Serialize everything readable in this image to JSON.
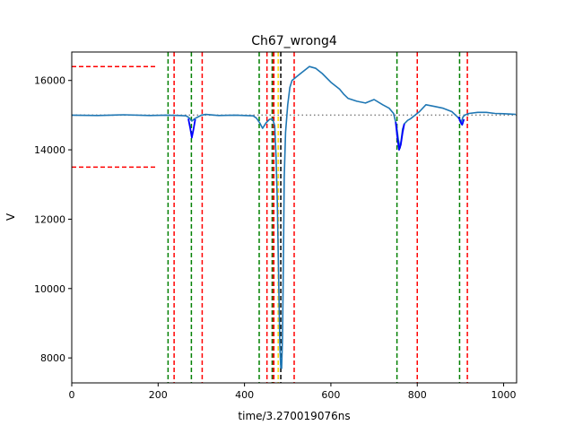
{
  "chart_data": {
    "type": "line",
    "title": "Ch67_wrong4",
    "xlabel": "time/3.270019076ns",
    "ylabel": "V",
    "xlim": [
      0,
      1030
    ],
    "ylim": [
      7280,
      16820
    ],
    "grid": false,
    "legend": "none",
    "x_ticks": [
      0,
      200,
      400,
      600,
      800,
      1000
    ],
    "y_ticks": [
      8000,
      10000,
      12000,
      14000,
      16000
    ],
    "x_tick_labels": [
      "0",
      "200",
      "400",
      "600",
      "800",
      "1000"
    ],
    "y_tick_labels": [
      "8000",
      "10000",
      "12000",
      "14000",
      "16000"
    ],
    "colors": {
      "signal": "#1f77b4",
      "highlight": "#0000ff",
      "baseline": "#808080",
      "green_marker": "#008000",
      "red_marker": "#ff0000",
      "dark_marker": "#8b4513",
      "gold_marker": "#ffd700"
    },
    "series": [
      {
        "color": "#1f77b4",
        "x": [
          0,
          60,
          120,
          180,
          220,
          250,
          265,
          272,
          278,
          285,
          300,
          310,
          340,
          380,
          420,
          428,
          435,
          442,
          450,
          458,
          465,
          470,
          473,
          476,
          478,
          480,
          482,
          484,
          486,
          488,
          490,
          492,
          495,
          500,
          505,
          510,
          520,
          535,
          550,
          565,
          580,
          600,
          620,
          630,
          640,
          660,
          680,
          700,
          720,
          735,
          745,
          752,
          756,
          760,
          763,
          766,
          770,
          778,
          785,
          795,
          805,
          820,
          840,
          860,
          880,
          893,
          898,
          902,
          906,
          910,
          920,
          940,
          960,
          980,
          1000,
          1015,
          1028
        ],
        "y": [
          15000,
          14990,
          15010,
          14990,
          15000,
          14990,
          14980,
          14920,
          14830,
          14900,
          15000,
          15020,
          14990,
          15000,
          14980,
          14910,
          14780,
          14620,
          14780,
          14880,
          14890,
          14700,
          13800,
          12500,
          11000,
          9700,
          8300,
          7720,
          7700,
          8600,
          10800,
          13200,
          14500,
          15300,
          15800,
          16000,
          16100,
          16250,
          16400,
          16350,
          16200,
          15950,
          15750,
          15600,
          15480,
          15400,
          15350,
          15450,
          15300,
          15200,
          15050,
          14700,
          14300,
          14050,
          14300,
          14600,
          14750,
          14850,
          14900,
          15000,
          15100,
          15300,
          15250,
          15200,
          15100,
          14950,
          14880,
          14800,
          14950,
          15000,
          15050,
          15080,
          15080,
          15050,
          15040,
          15030,
          15020
        ]
      },
      {
        "color": "#0000ff",
        "x": [
          270,
          274,
          278,
          282,
          286
        ],
        "y": [
          14900,
          14650,
          14350,
          14600,
          14880
        ]
      },
      {
        "color": "#0000ff",
        "x": [
          750,
          754,
          758,
          762,
          766,
          770
        ],
        "y": [
          14800,
          14350,
          14000,
          14150,
          14500,
          14750
        ]
      },
      {
        "color": "#0000ff",
        "x": [
          896,
          900,
          904,
          908
        ],
        "y": [
          14950,
          14800,
          14720,
          14880
        ]
      }
    ],
    "hlines": [
      {
        "y": 15000,
        "xmin": 0,
        "xmax": 1030,
        "color": "#808080",
        "style": "dotted"
      },
      {
        "y": 16400,
        "xmin": 0,
        "xmax": 197,
        "color": "#ff0000",
        "style": "dashed"
      },
      {
        "y": 13500,
        "xmin": 0,
        "xmax": 197,
        "color": "#ff0000",
        "style": "dashed"
      }
    ],
    "vlines": [
      {
        "x": 223,
        "color": "#008000",
        "style": "dashed"
      },
      {
        "x": 237,
        "color": "#ff0000",
        "style": "dashed"
      },
      {
        "x": 277,
        "color": "#008000",
        "style": "dashed"
      },
      {
        "x": 302,
        "color": "#ff0000",
        "style": "dashed"
      },
      {
        "x": 434,
        "color": "#008000",
        "style": "dashed"
      },
      {
        "x": 452,
        "color": "#ff0000",
        "style": "dashed"
      },
      {
        "x": 464,
        "color": "#008000",
        "style": "dashed"
      },
      {
        "x": 466,
        "color": "#8b4513",
        "style": "dashed"
      },
      {
        "x": 468,
        "color": "#ff0000",
        "style": "dashed"
      },
      {
        "x": 478,
        "color": "#ffd700",
        "style": "dashed"
      },
      {
        "x": 484,
        "color": "#000000",
        "style": "dashed"
      },
      {
        "x": 515,
        "color": "#ff0000",
        "style": "dashed"
      },
      {
        "x": 753,
        "color": "#008000",
        "style": "dashed"
      },
      {
        "x": 800,
        "color": "#ff0000",
        "style": "dashed"
      },
      {
        "x": 898,
        "color": "#008000",
        "style": "dashed"
      },
      {
        "x": 916,
        "color": "#ff0000",
        "style": "dashed"
      }
    ]
  }
}
